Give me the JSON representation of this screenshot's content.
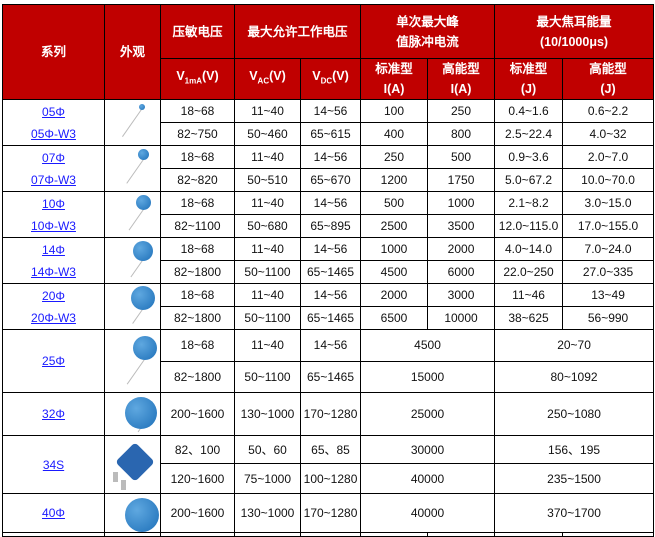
{
  "header": {
    "series": "系列",
    "appearance": "外观",
    "varistor_voltage": "压敏电压",
    "max_working_voltage": "最大允许工作电压",
    "peak_current_line1": "单次最大峰",
    "peak_current_line2": "值脉冲电流",
    "max_energy_line1": "最大焦耳能量",
    "max_energy_line2": "(10/1000μs)",
    "v1ma_v": "V",
    "v1ma_sub": "1mA",
    "v1ma_unit": "(V)",
    "vac_v": "V",
    "vac_sub": "AC",
    "vac_unit": "(V)",
    "vdc_v": "V",
    "vdc_sub": "DC",
    "vdc_unit": "(V)",
    "std_type": "标准型",
    "high_type": "高能型",
    "unit_a": "I(A)",
    "unit_j": "(J)"
  },
  "accent_color": "#c00000",
  "groups": [
    {
      "links": [
        "05Φ",
        "05Φ-W3"
      ],
      "icon": "varistor-disc-5mm",
      "rows": [
        [
          "18~68",
          "11~40",
          "14~56",
          "100",
          "250",
          "0.4~1.6",
          "0.6~2.2"
        ],
        [
          "82~750",
          "50~460",
          "65~615",
          "400",
          "800",
          "2.5~22.4",
          "4.0~32"
        ]
      ]
    },
    {
      "links": [
        "07Φ",
        "07Φ-W3"
      ],
      "icon": "varistor-disc-7mm",
      "rows": [
        [
          "18~68",
          "11~40",
          "14~56",
          "250",
          "500",
          "0.9~3.6",
          "2.0~7.0"
        ],
        [
          "82~820",
          "50~510",
          "65~670",
          "1200",
          "1750",
          "5.0~67.2",
          "10.0~70.0"
        ]
      ]
    },
    {
      "links": [
        "10Φ",
        "10Φ-W3"
      ],
      "icon": "varistor-disc-10mm",
      "rows": [
        [
          "18~68",
          "11~40",
          "14~56",
          "500",
          "1000",
          "2.1~8.2",
          "3.0~15.0"
        ],
        [
          "82~1100",
          "50~680",
          "65~895",
          "2500",
          "3500",
          "12.0~115.0",
          "17.0~155.0"
        ]
      ]
    },
    {
      "links": [
        "14Φ",
        "14Φ-W3"
      ],
      "icon": "varistor-disc-14mm",
      "rows": [
        [
          "18~68",
          "11~40",
          "14~56",
          "1000",
          "2000",
          "4.0~14.0",
          "7.0~24.0"
        ],
        [
          "82~1800",
          "50~1100",
          "65~1465",
          "4500",
          "6000",
          "22.0~250",
          "27.0~335"
        ]
      ]
    },
    {
      "links": [
        "20Φ",
        "20Φ-W3"
      ],
      "icon": "varistor-disc-20mm",
      "rows": [
        [
          "18~68",
          "11~40",
          "14~56",
          "2000",
          "3000",
          "11~46",
          "13~49"
        ],
        [
          "82~1800",
          "50~1100",
          "65~1465",
          "6500",
          "10000",
          "38~625",
          "56~990"
        ]
      ]
    },
    {
      "links": [
        "25Φ"
      ],
      "icon": "varistor-disc-25mm",
      "rows": [
        [
          "18~68",
          "11~40",
          "14~56",
          "4500",
          "20~70"
        ],
        [
          "82~1800",
          "50~1100",
          "65~1465",
          "15000",
          "80~1092"
        ]
      ]
    },
    {
      "links": [
        "32Φ"
      ],
      "icon": "varistor-disc-32mm",
      "rows": [
        [
          "200~1600",
          "130~1000",
          "170~1280",
          "25000",
          "250~1080"
        ]
      ]
    },
    {
      "links": [
        "34S"
      ],
      "icon": "varistor-square-34s",
      "rows": [
        [
          "82、100",
          "50、60",
          "65、85",
          "30000",
          "156、195"
        ],
        [
          "120~1600",
          "75~1000",
          "100~1280",
          "40000",
          "235~1500"
        ]
      ]
    },
    {
      "links": [
        "40Φ"
      ],
      "icon": "varistor-disc-40mm",
      "rows": [
        [
          "200~1600",
          "130~1000",
          "170~1280",
          "40000",
          "370~1700"
        ]
      ]
    }
  ]
}
